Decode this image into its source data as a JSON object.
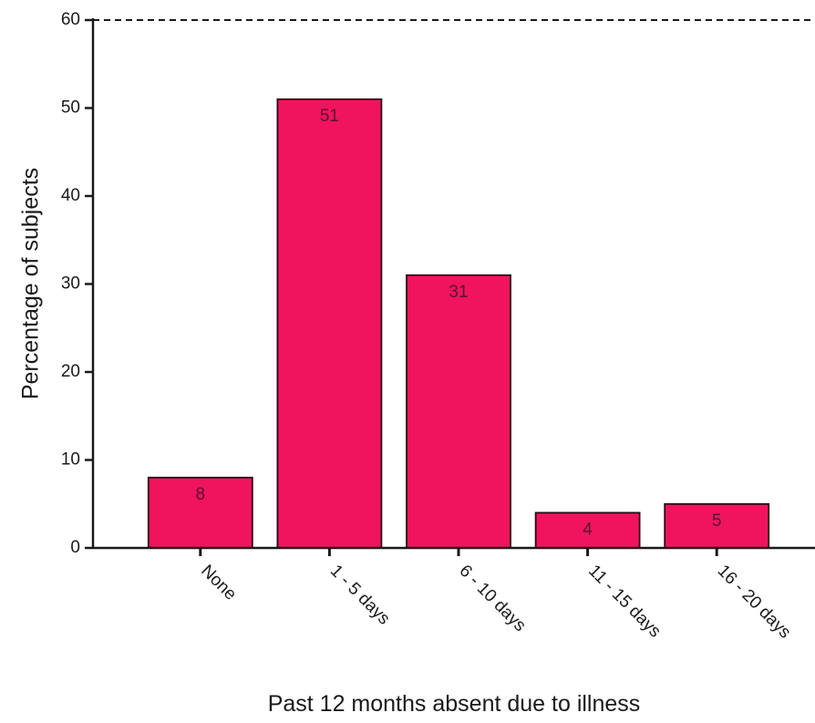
{
  "chart_data": {
    "type": "bar",
    "categories": [
      "None",
      "1 - 5 days",
      "6 - 10 days",
      "11 - 15 days",
      "16 - 20 days"
    ],
    "values": [
      8,
      51,
      31,
      4,
      5
    ],
    "data_labels": [
      "8",
      "51",
      "31",
      "4",
      "5"
    ],
    "xlabel": "Past 12 months absent due to illness",
    "ylabel": "Percentage of subjects",
    "ylim": [
      0,
      60
    ],
    "yticks": [
      "0",
      "10",
      "20",
      "30",
      "40",
      "50",
      "60"
    ],
    "grid": false,
    "legend": "none",
    "bar_color": "#f0145e",
    "bar_edge_color": "#2a0a14"
  }
}
